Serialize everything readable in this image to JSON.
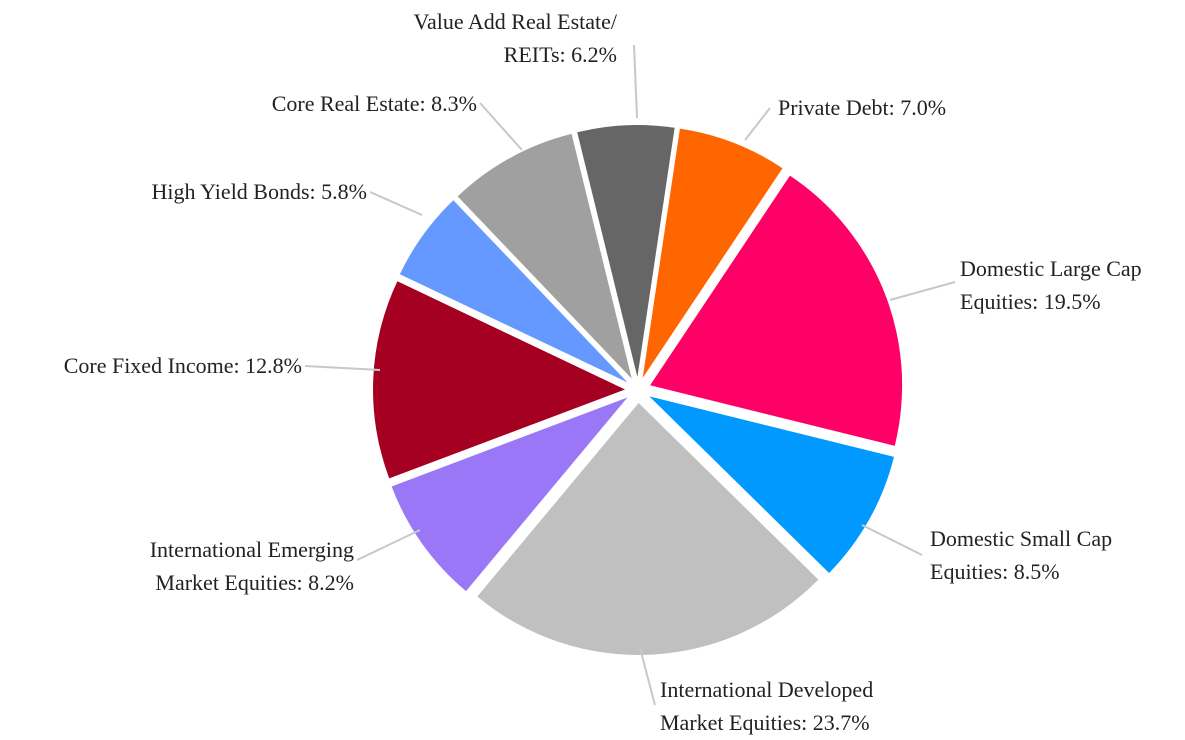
{
  "chart_data": {
    "type": "pie",
    "categories": [
      "Private Debt",
      "Domestic Large Cap Equities",
      "Domestic Small Cap Equities",
      "International Developed Market Equities",
      "International Emerging Market Equities",
      "Core Fixed Income",
      "High Yield Bonds",
      "Core Real Estate",
      "Value Add Real Estate/ REITs"
    ],
    "values": [
      7.0,
      19.5,
      8.5,
      23.7,
      8.2,
      12.8,
      5.8,
      8.3,
      6.2
    ],
    "value_labels": [
      "7.0%",
      "19.5%",
      "8.5%",
      "23.7%",
      "8.2%",
      "12.8%",
      "5.8%",
      "8.3%",
      "6.2%"
    ],
    "colors": [
      "#ff6600",
      "#ff0066",
      "#0099ff",
      "#c0c0c0",
      "#9977f7",
      "#a50021",
      "#6699ff",
      "#a0a0a0",
      "#666666"
    ]
  }
}
